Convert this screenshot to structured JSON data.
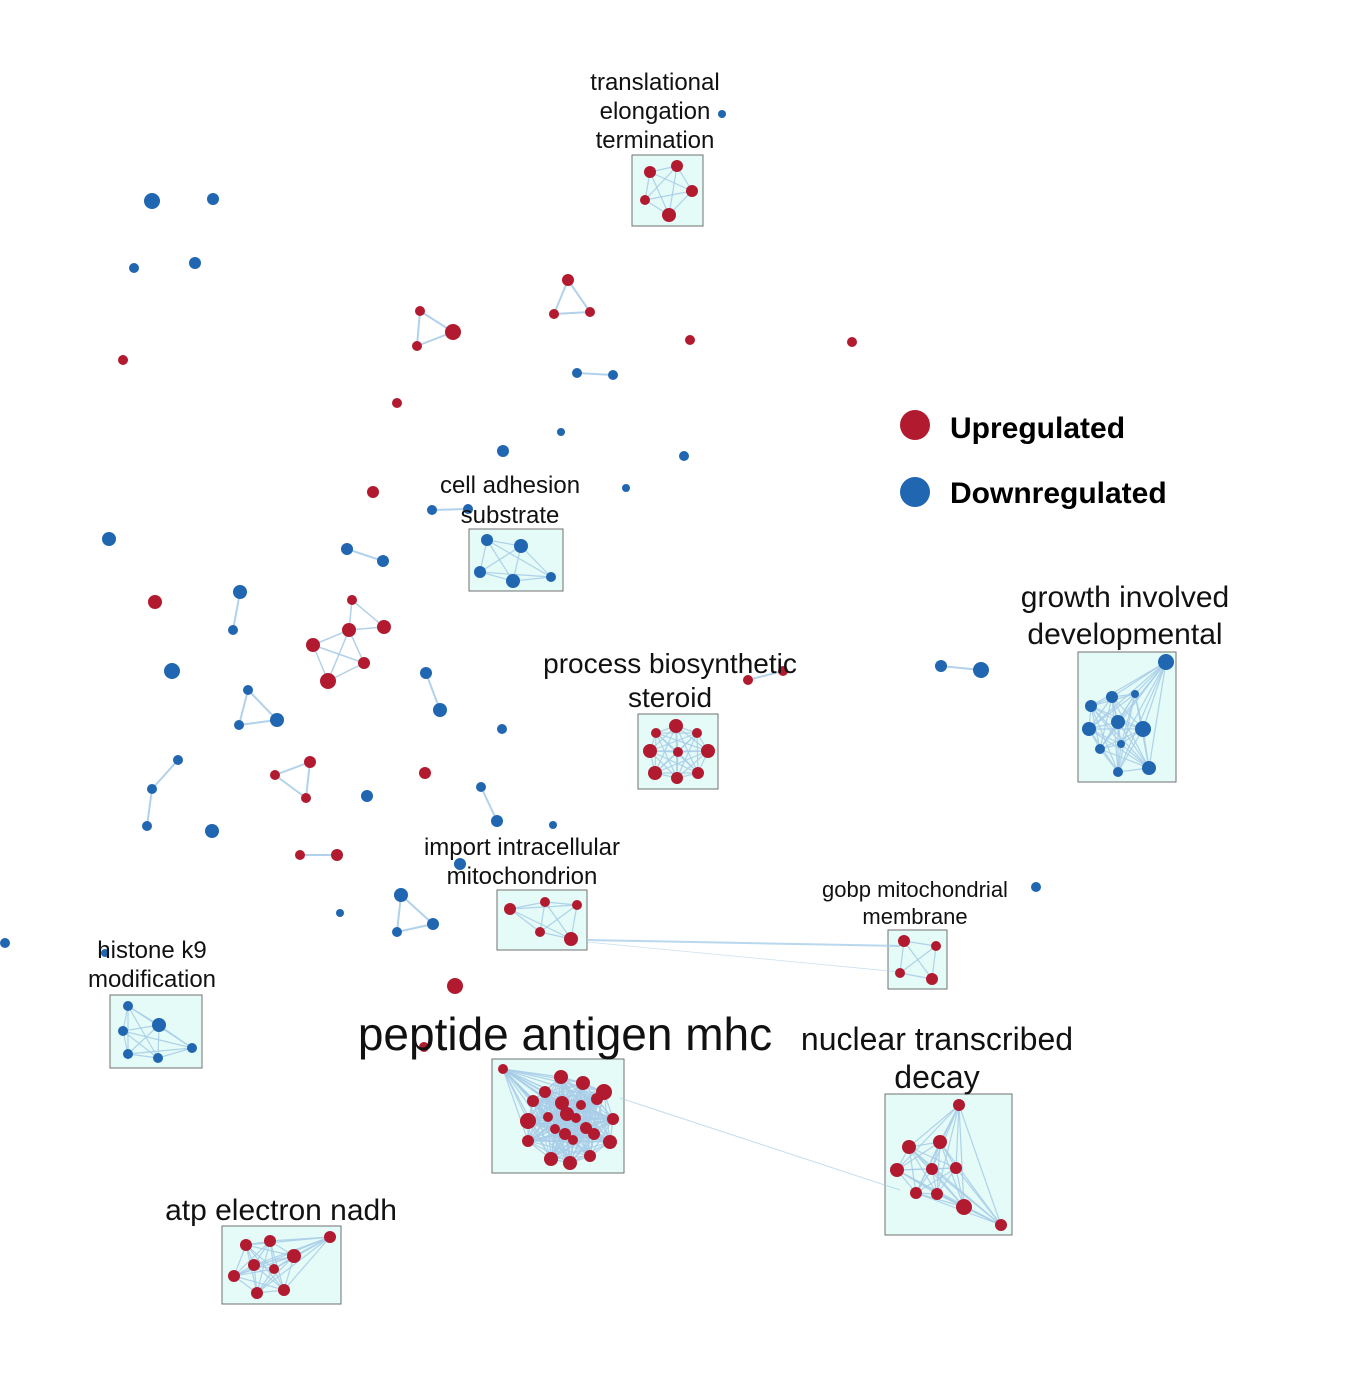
{
  "colors": {
    "up": "#b21a30",
    "down": "#2166b0",
    "edge": "#a8cde8",
    "box_fill": "#e4fbf8",
    "box_stroke": "#707070"
  },
  "legend": {
    "up_label": "Upregulated",
    "down_label": "Downregulated"
  },
  "clusters": [
    {
      "id": "translational",
      "label_lines": [
        "translational",
        "elongation",
        "termination"
      ]
    },
    {
      "id": "cell-adhesion",
      "label_lines": [
        "cell adhesion",
        "substrate"
      ]
    },
    {
      "id": "growth",
      "label_lines": [
        "growth involved",
        "developmental"
      ]
    },
    {
      "id": "steroid",
      "label_lines": [
        "process biosynthetic",
        "steroid"
      ]
    },
    {
      "id": "import",
      "label_lines": [
        "import intracellular",
        "mitochondrion"
      ]
    },
    {
      "id": "gobp",
      "label_lines": [
        "gobp mitochondrial",
        "membrane"
      ]
    },
    {
      "id": "histone",
      "label_lines": [
        "histone k9",
        "modification"
      ]
    },
    {
      "id": "peptide",
      "label_lines": [
        "peptide antigen mhc"
      ]
    },
    {
      "id": "nuclear",
      "label_lines": [
        "nuclear transcribed",
        "decay"
      ]
    },
    {
      "id": "atp",
      "label_lines": [
        "atp electron nadh"
      ]
    }
  ]
}
